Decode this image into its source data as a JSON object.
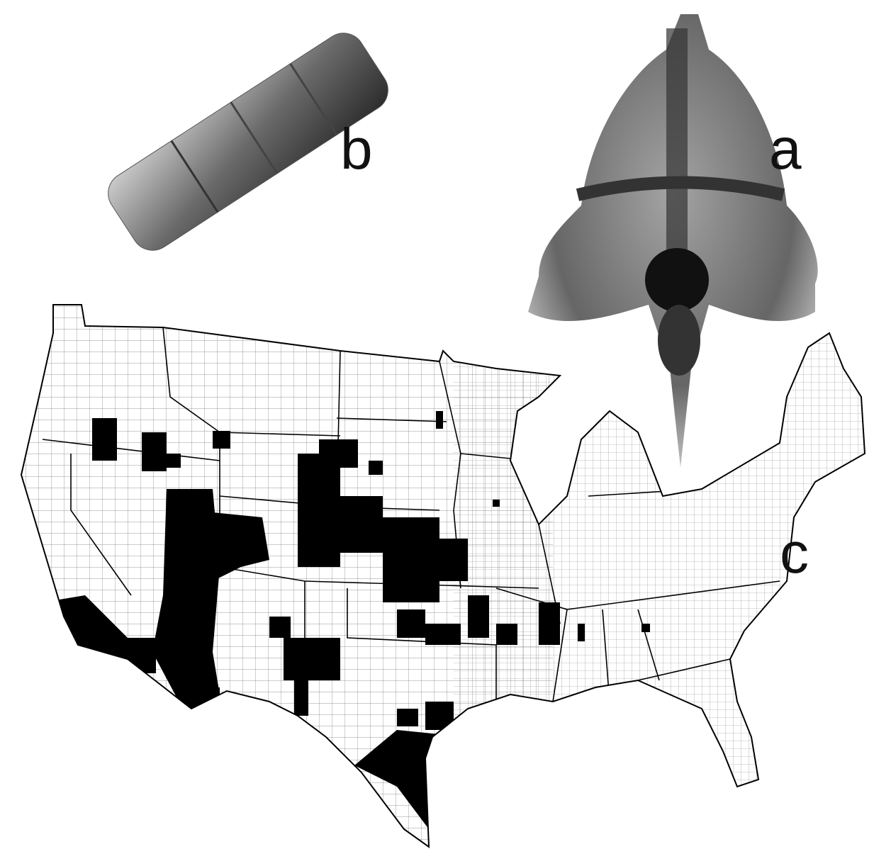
{
  "panels": [
    {
      "label": "b"
    },
    {
      "label": "a"
    },
    {
      "label": "c"
    }
  ]
}
